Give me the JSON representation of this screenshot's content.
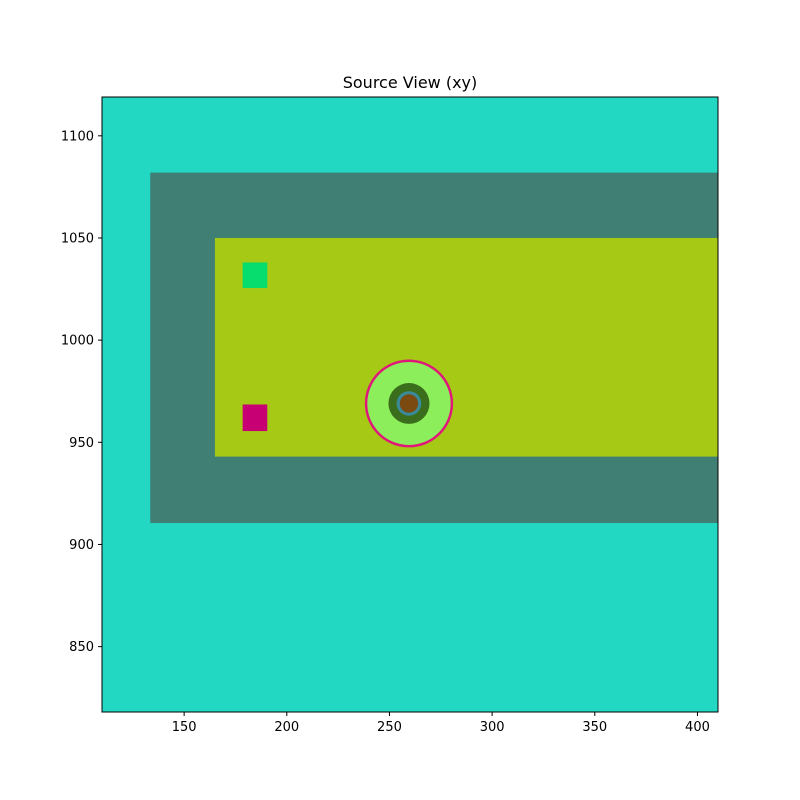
{
  "chart_data": {
    "type": "heatmap",
    "title": "Source View (xy)",
    "xlabel": "",
    "ylabel": "",
    "xlim": [
      110,
      410
    ],
    "ylim": [
      818,
      1119
    ],
    "xticks": [
      150,
      200,
      250,
      300,
      350,
      400
    ],
    "yticks": [
      850,
      900,
      950,
      1000,
      1050,
      1100
    ],
    "background_color": "#22d8c2",
    "regions": [
      {
        "name": "outer-band",
        "shape": "rect",
        "x0": 133.5,
        "x1": 410,
        "y0": 910.5,
        "y1": 1082,
        "color": "#407f74"
      },
      {
        "name": "inner-region",
        "shape": "rect",
        "x0": 165,
        "x1": 410,
        "y0": 943,
        "y1": 1050,
        "color": "#a6c916"
      },
      {
        "name": "green-square",
        "shape": "rect",
        "x0": 178.5,
        "x1": 190.5,
        "y0": 1025.5,
        "y1": 1038,
        "color": "#07dd6e"
      },
      {
        "name": "magenta-square",
        "shape": "rect",
        "x0": 178.5,
        "x1": 190.5,
        "y0": 955.5,
        "y1": 968.5,
        "color": "#c70073"
      },
      {
        "name": "ring-outer",
        "shape": "circle",
        "cx": 259.5,
        "cy": 969,
        "r": 21.5,
        "color": "#e0167a"
      },
      {
        "name": "ring-fill",
        "shape": "circle",
        "cx": 259.5,
        "cy": 969,
        "r": 20.3,
        "color": "#8cee5a"
      },
      {
        "name": "dark-green-core",
        "shape": "circle",
        "cx": 259.5,
        "cy": 969,
        "r": 10,
        "color": "#3a6e1c"
      },
      {
        "name": "blue-ring",
        "shape": "circle",
        "cx": 259.5,
        "cy": 969,
        "r": 6,
        "color": "#3a8a9a"
      },
      {
        "name": "brown-center",
        "shape": "circle",
        "cx": 259.5,
        "cy": 969,
        "r": 4.5,
        "color": "#7a4a10"
      }
    ]
  }
}
